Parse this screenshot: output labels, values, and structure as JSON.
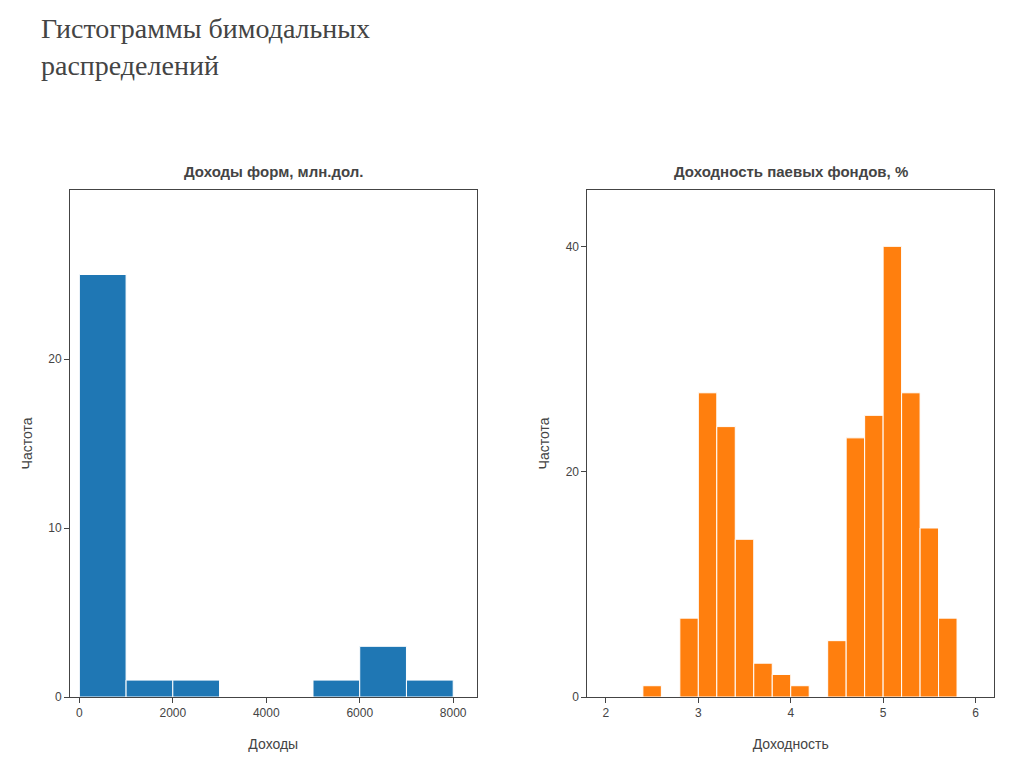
{
  "title": "Гистограммы бимодальных\nраспределений",
  "chart_data": [
    {
      "type": "histogram",
      "title": "Доходы форм, млн.дол.",
      "xlabel": "Доходы",
      "ylabel": "Частота",
      "bins": [
        0,
        1000,
        2000,
        3000,
        4000,
        5000,
        6000,
        7000,
        8000
      ],
      "values": [
        25,
        1,
        1,
        0,
        0,
        1,
        3,
        1
      ],
      "xlim": [
        -200,
        8500
      ],
      "ylim": [
        0,
        30
      ],
      "xticks": [
        0,
        2000,
        4000,
        6000,
        8000
      ],
      "yticks": [
        0,
        10,
        20
      ],
      "grid": false
    },
    {
      "type": "histogram",
      "title": "Доходность паевых фондов, %",
      "xlabel": "Доходность",
      "ylabel": "Частота",
      "bins": [
        2.0,
        2.2,
        2.4,
        2.6,
        2.8,
        3.0,
        3.2,
        3.4,
        3.6,
        3.8,
        4.0,
        4.2,
        4.4,
        4.6,
        4.8,
        5.0,
        5.2,
        5.4,
        5.6,
        5.8,
        6.0
      ],
      "values": [
        0,
        0,
        1,
        0,
        7,
        27,
        24,
        14,
        3,
        2,
        1,
        0,
        5,
        23,
        25,
        40,
        27,
        15,
        7,
        0
      ],
      "xlim": [
        1.8,
        6.2
      ],
      "ylim": [
        0,
        45
      ],
      "xticks": [
        2,
        3,
        4,
        5,
        6
      ],
      "yticks": [
        0,
        20,
        40
      ],
      "grid": false
    }
  ]
}
